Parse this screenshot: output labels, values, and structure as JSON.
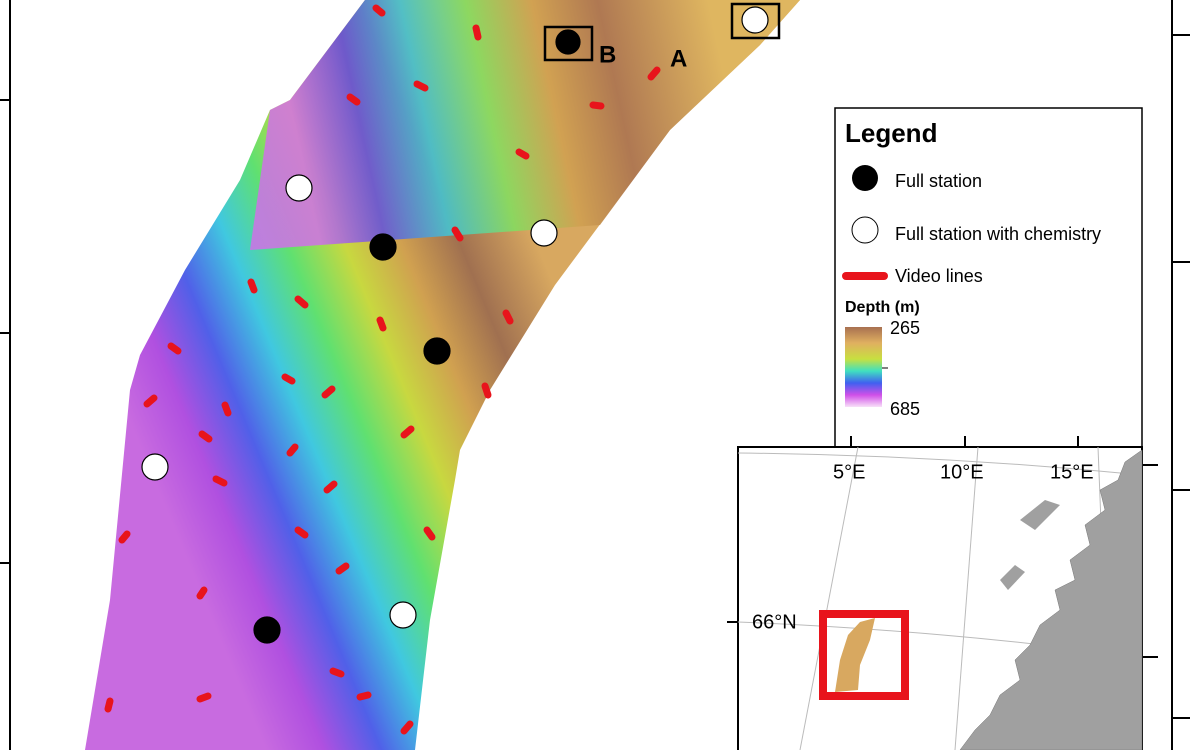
{
  "labels": {
    "a": "A",
    "b": "B"
  },
  "legend": {
    "title": "Legend",
    "items": [
      "Full station",
      "Full station with chemistry",
      "Video lines"
    ],
    "depth_title": "Depth (m)",
    "depth_max": "265",
    "depth_min": "685"
  },
  "inset": {
    "lon_labels": [
      "5°E",
      "10°E",
      "15°E"
    ],
    "lat_label": "66°N"
  }
}
